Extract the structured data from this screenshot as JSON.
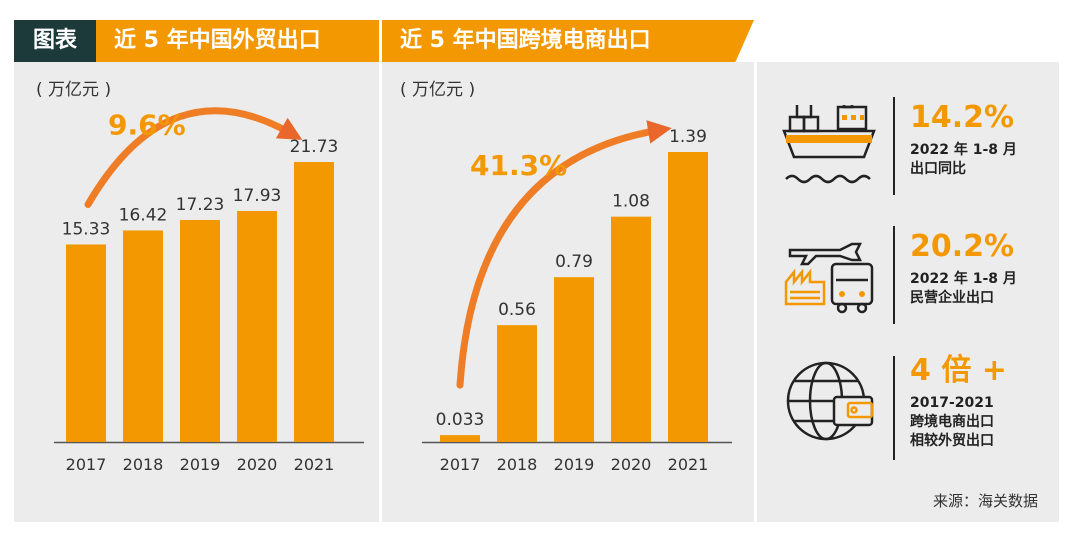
{
  "header": {
    "tag": "图表",
    "left_title": "近 5 年中国外贸出口",
    "right_title": "近 5 年中国跨境电商出口"
  },
  "chart_data": [
    {
      "type": "bar",
      "title": "近 5 年中国外贸出口",
      "ylabel": "( 万亿元 )",
      "categories": [
        "2017",
        "2018",
        "2019",
        "2020",
        "2021"
      ],
      "values": [
        15.33,
        16.42,
        17.23,
        17.93,
        21.73
      ],
      "value_labels": [
        "15.33",
        "16.42",
        "17.23",
        "17.93",
        "21.73"
      ],
      "growth_label": "9.6%",
      "color": "#f39800"
    },
    {
      "type": "bar",
      "title": "近 5 年中国跨境电商出口",
      "ylabel": "( 万亿元 )",
      "categories": [
        "2017",
        "2018",
        "2019",
        "2020",
        "2021"
      ],
      "values": [
        0.033,
        0.56,
        0.79,
        1.08,
        1.39
      ],
      "value_labels": [
        "0.033",
        "0.56",
        "0.79",
        "1.08",
        "1.39"
      ],
      "growth_label": "41.3%",
      "color": "#f39800"
    }
  ],
  "stats": [
    {
      "icon": "cargo-ship-icon",
      "value": "14.2%",
      "desc": "2022 年 1-8 月\n出口同比"
    },
    {
      "icon": "plane-truck-factory-icon",
      "value": "20.2%",
      "desc": "2022 年 1-8 月\n民营企业出口"
    },
    {
      "icon": "globe-wallet-icon",
      "value": "4 倍 +",
      "desc": "2017-2021\n跨境电商出口\n相较外贸出口"
    }
  ],
  "source": "来源：海关数据",
  "colors": {
    "accent": "#f39800",
    "dark": "#1c3a3a",
    "panel": "#ececec"
  }
}
